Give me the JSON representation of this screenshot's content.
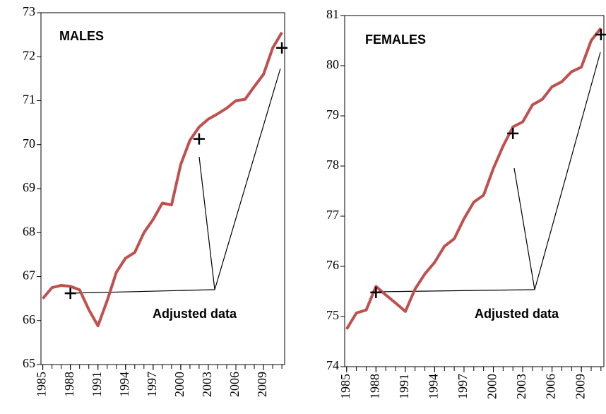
{
  "chart_data": [
    {
      "type": "line",
      "title": "MALES",
      "annotation": "Adjusted data",
      "color": "#c0504d",
      "x": [
        1985,
        1986,
        1987,
        1988,
        1989,
        1990,
        1991,
        1992,
        1993,
        1994,
        1995,
        1996,
        1997,
        1998,
        1999,
        2000,
        2001,
        2002,
        2003,
        2004,
        2005,
        2006,
        2007,
        2008,
        2009,
        2010,
        2011
      ],
      "values": [
        66.5,
        66.75,
        66.8,
        66.78,
        66.7,
        66.25,
        65.88,
        66.45,
        67.1,
        67.42,
        67.55,
        68.0,
        68.3,
        68.67,
        68.63,
        69.55,
        70.1,
        70.4,
        70.58,
        70.7,
        70.83,
        71.0,
        71.03,
        71.32,
        71.6,
        72.2,
        72.55
      ],
      "adjusted_x": [
        1988,
        2002,
        2011
      ],
      "adjusted_values": [
        66.62,
        70.13,
        72.2
      ],
      "xlim": [
        1984.8,
        2011.3
      ],
      "xticks": [
        1985,
        1988,
        1991,
        1994,
        1997,
        2000,
        2003,
        2006,
        2009
      ],
      "ylim": [
        65,
        73
      ],
      "yticks": [
        65,
        66,
        67,
        68,
        69,
        70,
        71,
        72,
        73
      ]
    },
    {
      "type": "line",
      "title": "FEMALES",
      "annotation": "Adjusted data",
      "color": "#c0504d",
      "x": [
        1985,
        1986,
        1987,
        1988,
        1989,
        1990,
        1991,
        1992,
        1993,
        1994,
        1995,
        1996,
        1997,
        1998,
        1999,
        2000,
        2001,
        2002,
        2003,
        2004,
        2005,
        2006,
        2007,
        2008,
        2009,
        2010,
        2011
      ],
      "values": [
        74.75,
        75.07,
        75.13,
        75.6,
        75.43,
        75.27,
        75.1,
        75.55,
        75.85,
        76.08,
        76.4,
        76.55,
        76.95,
        77.28,
        77.42,
        77.95,
        78.4,
        78.78,
        78.88,
        79.22,
        79.33,
        79.58,
        79.68,
        79.88,
        79.97,
        80.5,
        80.75
      ],
      "adjusted_x": [
        1988,
        2002,
        2011
      ],
      "adjusted_values": [
        75.48,
        78.65,
        80.62
      ],
      "xlim": [
        1984.8,
        2011.3
      ],
      "xticks": [
        1985,
        1988,
        1991,
        1994,
        1997,
        2000,
        2003,
        2006,
        2009
      ],
      "ylim": [
        74,
        81
      ],
      "yticks": [
        74,
        75,
        76,
        77,
        78,
        79,
        80,
        81
      ]
    }
  ]
}
